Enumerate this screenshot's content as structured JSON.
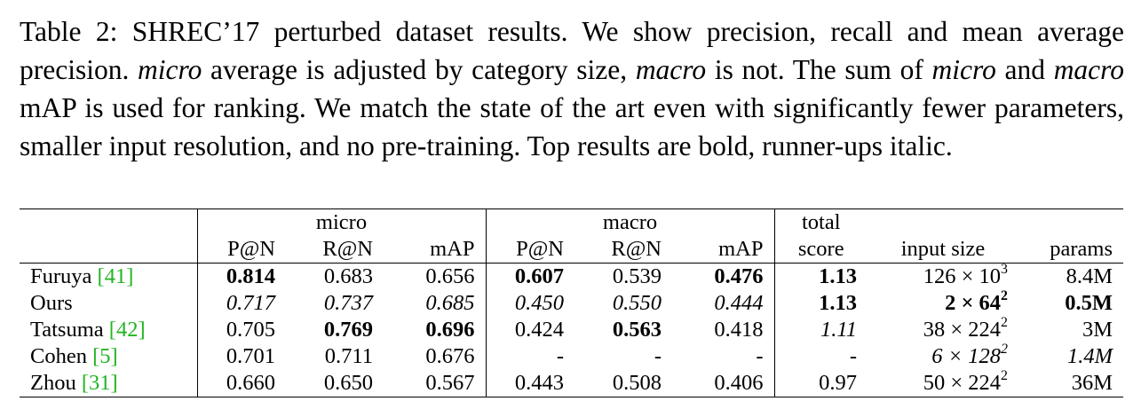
{
  "caption": {
    "p1": "Table 2: SHREC’17 perturbed dataset results. We show precision, recall and mean average precision. ",
    "em1": "micro",
    "p2": " average is adjusted by category size, ",
    "em2": "macro",
    "p3": " is not. The sum of ",
    "em3": "micro",
    "p4": " and ",
    "em4": "macro",
    "p5": " mAP is used for ranking. We match the state of the art even with significantly fewer parameters, smaller input resolution, and no pre-training. Top results are bold, runner-ups italic."
  },
  "header": {
    "micro": "micro",
    "macro": "macro",
    "total": "total",
    "score": "score",
    "pn": "P@N",
    "rn": "R@N",
    "map": "mAP",
    "input_size": "input size",
    "params": "params"
  },
  "rows": [
    {
      "name": "Furuya",
      "ref": "[41]",
      "micro_pn": "0.814",
      "micro_rn": "0.683",
      "micro_map": "0.656",
      "macro_pn": "0.607",
      "macro_rn": "0.539",
      "macro_map": "0.476",
      "score": "1.13",
      "size_base": "126 × 10",
      "size_exp": "3",
      "params": "8.4M"
    },
    {
      "name": "Ours",
      "ref": "",
      "micro_pn": "0.717",
      "micro_rn": "0.737",
      "micro_map": "0.685",
      "macro_pn": "0.450",
      "macro_rn": "0.550",
      "macro_map": "0.444",
      "score": "1.13",
      "size_base": "2 × 64",
      "size_exp": "2",
      "params": "0.5M"
    },
    {
      "name": "Tatsuma",
      "ref": "[42]",
      "micro_pn": "0.705",
      "micro_rn": "0.769",
      "micro_map": "0.696",
      "macro_pn": "0.424",
      "macro_rn": "0.563",
      "macro_map": "0.418",
      "score": "1.11",
      "size_base": "38 × 224",
      "size_exp": "2",
      "params": "3M"
    },
    {
      "name": "Cohen",
      "ref": "[5]",
      "micro_pn": "0.701",
      "micro_rn": "0.711",
      "micro_map": "0.676",
      "macro_pn": "-",
      "macro_rn": "-",
      "macro_map": "-",
      "score": "-",
      "size_base": "6 × 128",
      "size_exp": "2",
      "params": "1.4M"
    },
    {
      "name": "Zhou",
      "ref": "[31]",
      "micro_pn": "0.660",
      "micro_rn": "0.650",
      "micro_map": "0.567",
      "macro_pn": "0.443",
      "macro_rn": "0.508",
      "macro_map": "0.406",
      "score": "0.97",
      "size_base": "50 × 224",
      "size_exp": "2",
      "params": "36M"
    }
  ]
}
